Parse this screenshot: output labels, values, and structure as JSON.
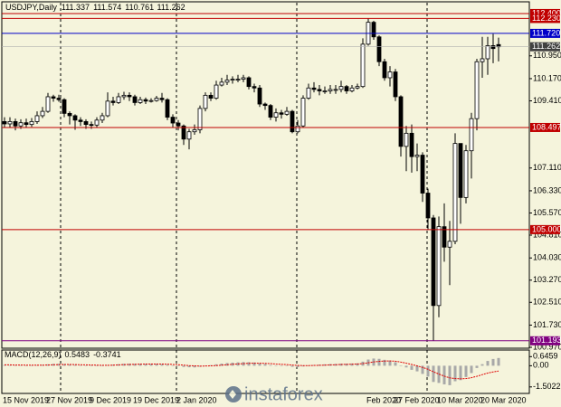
{
  "chart_data": {
    "type": "candlestick",
    "title": "USDJPY,Daily",
    "up_color": "#ffffff",
    "down_color": "#000000",
    "categories": [
      "15 Nov 2019",
      null,
      null,
      null,
      null,
      null,
      null,
      null,
      "27 Nov 2019",
      null,
      null,
      null,
      null,
      null,
      null,
      null,
      "9 Dec 2019",
      null,
      null,
      null,
      null,
      null,
      null,
      null,
      "19 Dec 2019",
      null,
      null,
      null,
      null,
      null,
      null,
      null,
      "2 Jan 2020",
      null,
      null,
      null,
      null,
      null,
      null,
      null,
      null,
      null,
      null,
      null,
      null,
      null,
      null,
      null,
      null,
      null,
      null,
      null,
      null,
      null,
      null,
      null,
      null,
      null,
      null,
      null,
      null,
      null,
      null,
      null,
      null,
      null,
      null,
      "Feb 2020",
      null,
      null,
      null,
      null,
      "27 Feb 2020",
      null,
      null,
      null,
      null,
      null,
      null,
      null,
      "10 Mar 2020",
      null,
      null,
      null,
      null,
      null,
      null,
      null,
      "20 Mar 2020",
      null,
      null,
      null
    ],
    "open": [
      108.7,
      108.62,
      108.7,
      108.55,
      108.66,
      108.6,
      108.7,
      108.9,
      109.05,
      109.55,
      109.5,
      109.45,
      108.98,
      108.9,
      108.75,
      108.7,
      108.6,
      108.58,
      108.75,
      108.9,
      109.4,
      109.35,
      109.55,
      109.6,
      109.55,
      109.35,
      109.45,
      109.4,
      109.42,
      109.5,
      109.45,
      108.85,
      108.65,
      108.55,
      108.1,
      108.35,
      108.42,
      109.15,
      109.6,
      109.5,
      109.95,
      110.05,
      110.12,
      110.15,
      110.15,
      110.2,
      109.9,
      109.85,
      109.3,
      109.25,
      108.85,
      109.0,
      108.95,
      109.05,
      108.35,
      108.55,
      109.5,
      109.85,
      109.8,
      109.75,
      109.75,
      109.8,
      109.8,
      109.9,
      109.75,
      109.85,
      109.9,
      111.35,
      112.1,
      111.6,
      110.75,
      110.2,
      110.4,
      109.55,
      107.85,
      108.3,
      107.5,
      107.55,
      106.25,
      105.4,
      102.4,
      105.1,
      104.4,
      104.6,
      107.95,
      106.1,
      107.7,
      108.8,
      110.75,
      110.85,
      111.3,
      111.337
    ],
    "high": [
      108.85,
      108.85,
      108.8,
      108.78,
      108.8,
      108.82,
      109.05,
      109.2,
      109.68,
      109.62,
      109.62,
      109.5,
      109.05,
      108.95,
      108.85,
      108.78,
      108.7,
      108.85,
      109.0,
      109.7,
      109.55,
      109.68,
      109.72,
      109.7,
      109.62,
      109.55,
      109.52,
      109.5,
      109.58,
      109.68,
      109.5,
      108.95,
      108.75,
      108.6,
      108.45,
      108.6,
      109.25,
      109.7,
      109.7,
      110.1,
      110.2,
      110.3,
      110.25,
      110.3,
      110.3,
      110.25,
      110.0,
      109.95,
      109.35,
      109.3,
      109.15,
      109.1,
      109.2,
      109.1,
      108.75,
      109.6,
      110.0,
      110.05,
      109.95,
      109.9,
      109.95,
      109.95,
      110.1,
      109.95,
      109.95,
      110.0,
      111.55,
      112.23,
      112.15,
      111.65,
      110.85,
      110.6,
      110.5,
      109.6,
      108.55,
      108.6,
      107.95,
      107.65,
      106.4,
      105.5,
      105.45,
      105.9,
      105.3,
      108.3,
      107.95,
      107.9,
      109.0,
      110.85,
      111.6,
      111.6,
      111.7,
      111.574
    ],
    "low": [
      108.5,
      108.48,
      108.4,
      108.45,
      108.48,
      108.52,
      108.62,
      108.82,
      109.0,
      109.38,
      109.38,
      108.85,
      108.6,
      108.42,
      108.55,
      108.45,
      108.45,
      108.5,
      108.65,
      108.85,
      109.25,
      109.3,
      109.45,
      109.4,
      109.25,
      109.3,
      109.3,
      109.35,
      109.38,
      109.35,
      108.75,
      108.5,
      108.4,
      107.9,
      107.75,
      108.25,
      108.3,
      109.05,
      109.4,
      109.45,
      109.9,
      109.95,
      110.0,
      110.05,
      110.05,
      109.8,
      109.7,
      109.2,
      109.1,
      108.75,
      108.7,
      108.8,
      108.9,
      108.3,
      108.3,
      108.5,
      109.45,
      109.7,
      109.6,
      109.65,
      109.65,
      109.65,
      109.7,
      109.65,
      109.7,
      109.8,
      109.85,
      111.3,
      111.5,
      110.6,
      110.1,
      109.9,
      109.4,
      107.5,
      107.0,
      106.95,
      107.0,
      105.95,
      105.0,
      101.19,
      102.0,
      103.9,
      103.1,
      104.5,
      105.2,
      105.9,
      106.75,
      108.4,
      110.2,
      110.3,
      110.7,
      110.761
    ],
    "close": [
      108.62,
      108.7,
      108.55,
      108.66,
      108.6,
      108.7,
      108.9,
      109.05,
      109.55,
      109.5,
      109.45,
      108.98,
      108.9,
      108.75,
      108.7,
      108.6,
      108.58,
      108.75,
      108.9,
      109.4,
      109.35,
      109.55,
      109.6,
      109.55,
      109.35,
      109.45,
      109.4,
      109.42,
      109.5,
      109.45,
      108.85,
      108.65,
      108.55,
      108.1,
      108.35,
      108.42,
      109.15,
      109.6,
      109.5,
      109.95,
      110.05,
      110.12,
      110.15,
      110.15,
      110.2,
      109.9,
      109.85,
      109.3,
      109.25,
      108.85,
      109.0,
      108.95,
      109.05,
      108.35,
      108.55,
      109.5,
      109.85,
      109.8,
      109.75,
      109.75,
      109.8,
      109.8,
      109.9,
      109.75,
      109.85,
      109.9,
      111.35,
      112.1,
      111.6,
      110.75,
      110.2,
      110.4,
      109.55,
      107.85,
      108.3,
      107.5,
      107.55,
      106.25,
      105.4,
      102.4,
      105.1,
      104.4,
      104.6,
      107.95,
      106.1,
      107.7,
      108.8,
      110.75,
      110.85,
      111.3,
      111.2,
      111.262
    ],
    "ylim": [
      100.97,
      112.77
    ],
    "yticks": [
      {
        "value": 110.95,
        "label": "110.950"
      },
      {
        "value": 110.17,
        "label": "110.170"
      },
      {
        "value": 109.41,
        "label": "109.410"
      },
      {
        "value": 107.11,
        "label": "107.110"
      },
      {
        "value": 106.33,
        "label": "106.330"
      },
      {
        "value": 105.57,
        "label": "105.570"
      },
      {
        "value": 104.81,
        "label": "104.810"
      },
      {
        "value": 104.03,
        "label": "104.030"
      },
      {
        "value": 103.27,
        "label": "103.270"
      },
      {
        "value": 102.51,
        "label": "102.510"
      },
      {
        "value": 101.73,
        "label": "101.730"
      },
      {
        "value": 100.97,
        "label": "100.970"
      }
    ],
    "levels": [
      {
        "value": 112.4,
        "label": "112.400",
        "color": "#c00000"
      },
      {
        "value": 112.23,
        "label": "112.230",
        "color": "#c00000"
      },
      {
        "value": 111.72,
        "label": "111.720",
        "color": "#0000c8"
      },
      {
        "value": 108.497,
        "label": "108.497",
        "color": "#c00000"
      },
      {
        "value": 105,
        "label": "105.000",
        "color": "#c00000"
      },
      {
        "value": 101.193,
        "label": "101.193",
        "color": "#800080"
      }
    ],
    "current_price": {
      "value": 111.262,
      "label": "111.262",
      "color": "#404040"
    },
    "indicator": {
      "name": "MACD(12,26,9)",
      "main_color": "#a8a8a8",
      "signal_color": "#e00000",
      "main": [
        0.05,
        0.04,
        0.03,
        0.03,
        0.02,
        0.02,
        0.04,
        0.06,
        0.1,
        0.13,
        0.14,
        0.12,
        0.09,
        0.06,
        0.03,
        0.01,
        -0.01,
        -0.01,
        0.01,
        0.05,
        0.08,
        0.11,
        0.14,
        0.15,
        0.14,
        0.14,
        0.13,
        0.13,
        0.13,
        0.12,
        0.07,
        0.02,
        -0.03,
        -0.09,
        -0.11,
        -0.12,
        -0.07,
        0.0,
        0.04,
        0.1,
        0.15,
        0.19,
        0.22,
        0.24,
        0.26,
        0.25,
        0.23,
        0.17,
        0.12,
        0.05,
        0.02,
        -0.01,
        -0.02,
        -0.08,
        -0.1,
        -0.05,
        0.01,
        0.05,
        0.08,
        0.1,
        0.12,
        0.13,
        0.15,
        0.15,
        0.16,
        0.17,
        0.29,
        0.44,
        0.51,
        0.49,
        0.42,
        0.37,
        0.25,
        0.02,
        -0.12,
        -0.29,
        -0.4,
        -0.58,
        -0.77,
        -1.15,
        -1.22,
        -1.32,
        -1.38,
        -1.1,
        -1.02,
        -0.8,
        -0.52,
        -0.16,
        0.11,
        0.34,
        0.48,
        0.5483
      ],
      "signal": [
        0.06,
        0.06,
        0.05,
        0.05,
        0.04,
        0.04,
        0.04,
        0.04,
        0.05,
        0.07,
        0.08,
        0.09,
        0.09,
        0.08,
        0.07,
        0.06,
        0.05,
        0.04,
        0.03,
        0.03,
        0.04,
        0.06,
        0.08,
        0.09,
        0.1,
        0.11,
        0.12,
        0.12,
        0.12,
        0.12,
        0.11,
        0.09,
        0.07,
        0.04,
        0.01,
        -0.01,
        -0.03,
        -0.02,
        -0.01,
        0.01,
        0.04,
        0.07,
        0.1,
        0.13,
        0.15,
        0.17,
        0.18,
        0.18,
        0.17,
        0.15,
        0.12,
        0.1,
        0.08,
        0.05,
        0.02,
        0.01,
        0.01,
        0.02,
        0.03,
        0.04,
        0.06,
        0.07,
        0.09,
        0.1,
        0.11,
        0.12,
        0.15,
        0.21,
        0.27,
        0.31,
        0.33,
        0.34,
        0.32,
        0.26,
        0.18,
        0.09,
        -0.01,
        -0.12,
        -0.25,
        -0.43,
        -0.59,
        -0.74,
        -0.86,
        -0.91,
        -0.93,
        -0.91,
        -0.85,
        -0.75,
        -0.63,
        -0.52,
        -0.44,
        -0.3741
      ],
      "ylim": [
        -1.9,
        1.05
      ],
      "yticks": [
        {
          "value": 0.6459,
          "label": "0.6459"
        },
        {
          "value": 0,
          "label": "0.00"
        },
        {
          "value": -1.5022,
          "label": "-1.5022"
        }
      ]
    }
  },
  "watermark": "instaforex"
}
